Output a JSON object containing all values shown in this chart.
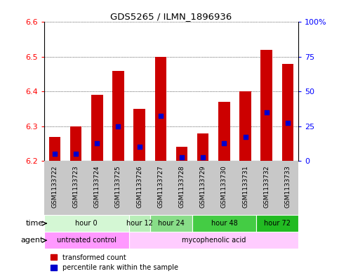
{
  "title": "GDS5265 / ILMN_1896936",
  "samples": [
    "GSM1133722",
    "GSM1133723",
    "GSM1133724",
    "GSM1133725",
    "GSM1133726",
    "GSM1133727",
    "GSM1133728",
    "GSM1133729",
    "GSM1133730",
    "GSM1133731",
    "GSM1133732",
    "GSM1133733"
  ],
  "bar_values": [
    6.27,
    6.3,
    6.39,
    6.46,
    6.35,
    6.5,
    6.24,
    6.28,
    6.37,
    6.4,
    6.52,
    6.48
  ],
  "percentile_values": [
    6.22,
    6.22,
    6.25,
    6.3,
    6.24,
    6.33,
    6.21,
    6.21,
    6.25,
    6.27,
    6.34,
    6.31
  ],
  "y_min": 6.2,
  "y_max": 6.6,
  "y_ticks_left": [
    6.2,
    6.3,
    6.4,
    6.5,
    6.6
  ],
  "y_ticks_right": [
    0,
    25,
    50,
    75,
    100
  ],
  "bar_color": "#cc0000",
  "percentile_color": "#0000cc",
  "bar_width": 0.55,
  "time_groups": [
    {
      "label": "hour 0",
      "start": 0,
      "end": 3,
      "color": "#d4f7d4"
    },
    {
      "label": "hour 12",
      "start": 4,
      "end": 4,
      "color": "#b8eeb8"
    },
    {
      "label": "hour 24",
      "start": 5,
      "end": 6,
      "color": "#88dd88"
    },
    {
      "label": "hour 48",
      "start": 7,
      "end": 9,
      "color": "#44cc44"
    },
    {
      "label": "hour 72",
      "start": 10,
      "end": 11,
      "color": "#22bb22"
    }
  ],
  "agent_groups": [
    {
      "label": "untreated control",
      "start": 0,
      "end": 3,
      "color": "#ff99ff"
    },
    {
      "label": "mycophenolic acid",
      "start": 4,
      "end": 11,
      "color": "#ffccff"
    }
  ],
  "sample_bg_color": "#c8c8c8",
  "legend_red_label": "transformed count",
  "legend_blue_label": "percentile rank within the sample",
  "time_label": "time",
  "agent_label": "agent"
}
